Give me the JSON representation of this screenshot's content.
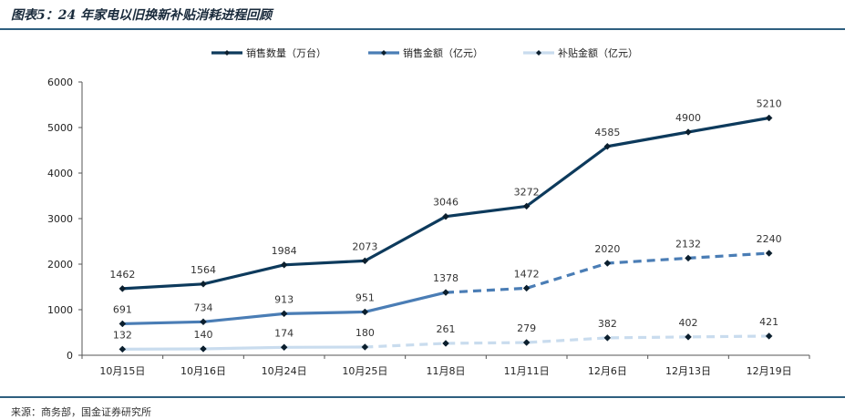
{
  "title": "图表5：24 年家电以旧换新补贴消耗进程回顾",
  "source": "来源：商务部，国金证券研究所",
  "chart_data": {
    "type": "line",
    "categories": [
      "10月15日",
      "10月16日",
      "10月24日",
      "10月25日",
      "11月8日",
      "11月11日",
      "12月6日",
      "12月13日",
      "12月19日"
    ],
    "ylim": [
      0,
      6000
    ],
    "yticks": [
      0,
      1000,
      2000,
      3000,
      4000,
      5000,
      6000
    ],
    "grid": false,
    "legend_position": "top",
    "series": [
      {
        "name": "销售数量（万台）",
        "color": "#0d3a5c",
        "values": [
          1462,
          1564,
          1984,
          2073,
          3046,
          3272,
          4585,
          4900,
          5210
        ],
        "dashed_from_index": null
      },
      {
        "name": "销售金额（亿元）",
        "color": "#4a7db5",
        "values": [
          691,
          734,
          913,
          951,
          1378,
          1472,
          2020,
          2132,
          2240
        ],
        "dashed_from_index": 4
      },
      {
        "name": "补贴金额（亿元）",
        "color": "#c9dcee",
        "values": [
          132,
          140,
          174,
          180,
          261,
          279,
          382,
          402,
          421
        ],
        "dashed_from_index": 3
      }
    ]
  }
}
